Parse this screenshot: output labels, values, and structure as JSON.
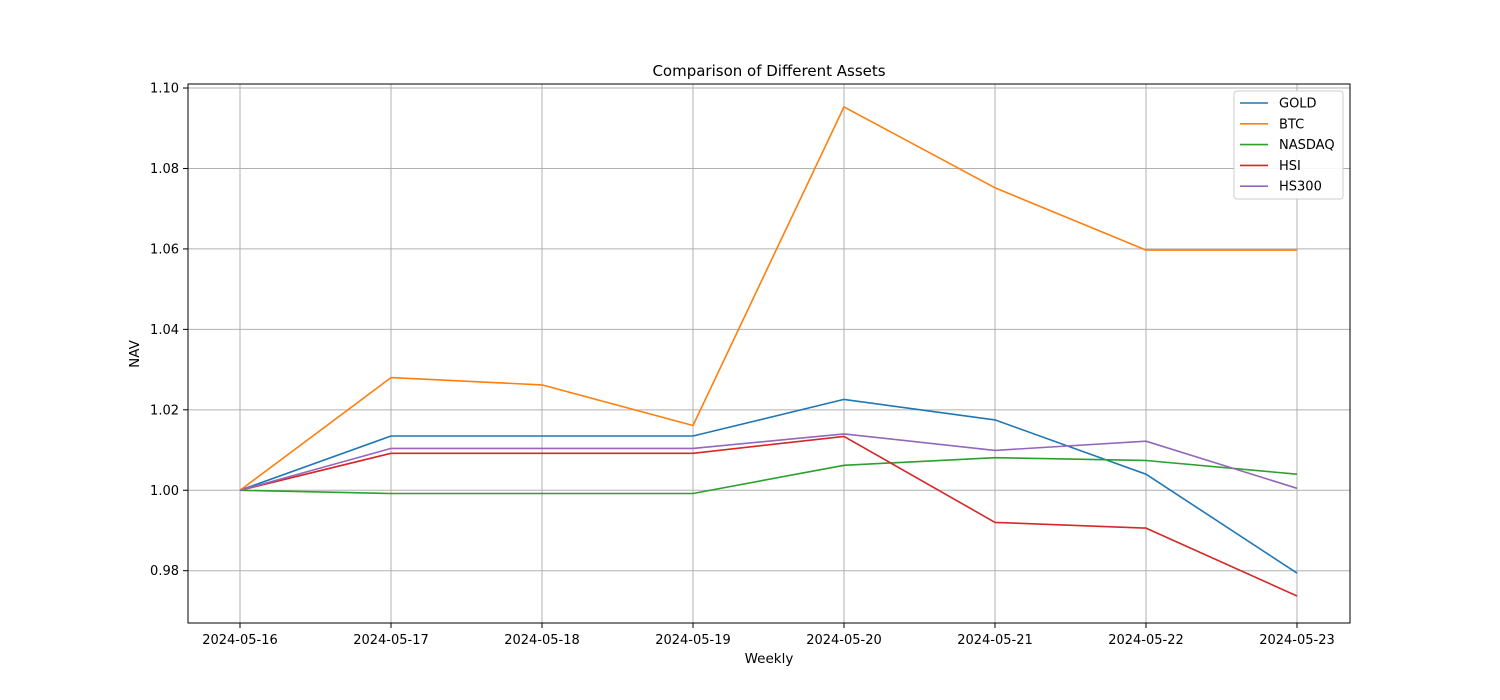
{
  "chart_data": {
    "type": "line",
    "title": "Comparison of Different Assets",
    "xlabel": "Weekly",
    "ylabel": "NAV",
    "x": [
      "2024-05-16",
      "2024-05-17",
      "2024-05-18",
      "2024-05-19",
      "2024-05-20",
      "2024-05-21",
      "2024-05-22",
      "2024-05-23"
    ],
    "ylim": [
      0.967,
      1.101
    ],
    "yticks": [
      "0.98",
      "1.00",
      "1.02",
      "1.04",
      "1.06",
      "1.08",
      "1.10"
    ],
    "grid": true,
    "legend_position": "top-right",
    "series": [
      {
        "name": "GOLD",
        "color": "#1f77b4",
        "values": [
          1.0,
          1.0135,
          1.0135,
          1.0135,
          1.0226,
          1.0175,
          1.004,
          0.9794
        ]
      },
      {
        "name": "BTC",
        "color": "#ff7f0e",
        "values": [
          1.0,
          1.028,
          1.0262,
          1.0161,
          1.0953,
          1.0752,
          1.0597,
          1.0597
        ]
      },
      {
        "name": "NASDAQ",
        "color": "#2ca02c",
        "values": [
          1.0,
          0.9992,
          0.9992,
          0.9992,
          1.0062,
          1.0081,
          1.0074,
          1.004
        ]
      },
      {
        "name": "HSI",
        "color": "#d62728",
        "values": [
          1.0,
          1.0092,
          1.0092,
          1.0092,
          1.0134,
          0.992,
          0.9906,
          0.9737
        ]
      },
      {
        "name": "HS300",
        "color": "#9467bd",
        "values": [
          1.0,
          1.0104,
          1.0104,
          1.0104,
          1.014,
          1.0099,
          1.0122,
          1.0005
        ]
      }
    ]
  }
}
